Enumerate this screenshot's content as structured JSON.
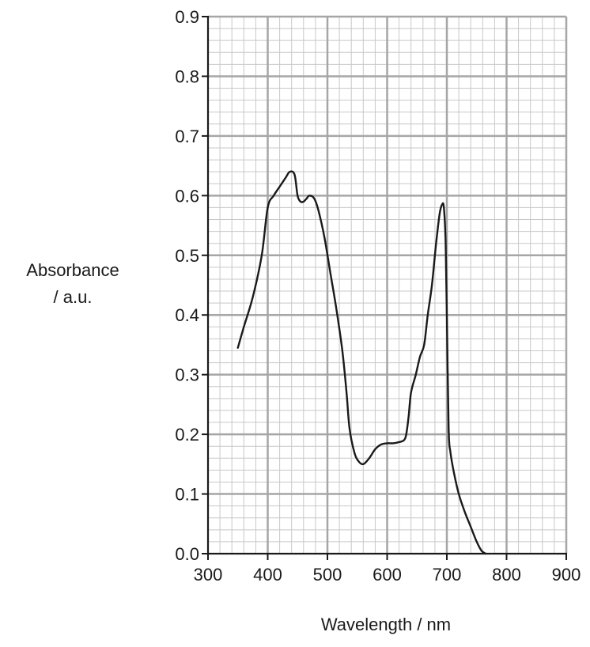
{
  "chart_data": {
    "type": "line",
    "title": "",
    "xlabel": "Wavelength / nm",
    "ylabel_lines": [
      "Absorbance",
      "/ a.u."
    ],
    "xlim": [
      300,
      900
    ],
    "ylim": [
      0.0,
      0.9
    ],
    "xticks": [
      300,
      400,
      500,
      600,
      700,
      800,
      900
    ],
    "xtick_labels": [
      "300",
      "400",
      "500",
      "600",
      "700",
      "800",
      "900"
    ],
    "yticks": [
      0.0,
      0.1,
      0.2,
      0.3,
      0.4,
      0.5,
      0.6,
      0.7,
      0.8,
      0.9
    ],
    "ytick_labels": [
      "0.0",
      "0.1",
      "0.2",
      "0.3",
      "0.4",
      "0.5",
      "0.6",
      "0.7",
      "0.8",
      "0.9"
    ],
    "grid": true,
    "minor_grid_per_major": 5,
    "series": [
      {
        "color": "#1a1a1a",
        "x": [
          350,
          360,
          375,
          390,
          400,
          410,
          420,
          430,
          437,
          445,
          450,
          455,
          460,
          465,
          470,
          478,
          485,
          495,
          505,
          515,
          525,
          532,
          537,
          545,
          552,
          560,
          570,
          580,
          590,
          600,
          610,
          620,
          628,
          632,
          636,
          640,
          648,
          655,
          662,
          668,
          675,
          682,
          688,
          692,
          695,
          698,
          700,
          703,
          706,
          712,
          720,
          730,
          740,
          750,
          758,
          765
        ],
        "y": [
          0.345,
          0.38,
          0.43,
          0.5,
          0.58,
          0.6,
          0.615,
          0.63,
          0.64,
          0.635,
          0.6,
          0.59,
          0.59,
          0.595,
          0.6,
          0.595,
          0.575,
          0.53,
          0.47,
          0.41,
          0.34,
          0.27,
          0.21,
          0.17,
          0.155,
          0.15,
          0.16,
          0.175,
          0.183,
          0.185,
          0.185,
          0.187,
          0.19,
          0.2,
          0.23,
          0.27,
          0.3,
          0.33,
          0.35,
          0.4,
          0.45,
          0.52,
          0.57,
          0.585,
          0.58,
          0.52,
          0.4,
          0.21,
          0.17,
          0.135,
          0.1,
          0.07,
          0.045,
          0.02,
          0.005,
          0.0
        ]
      }
    ]
  }
}
